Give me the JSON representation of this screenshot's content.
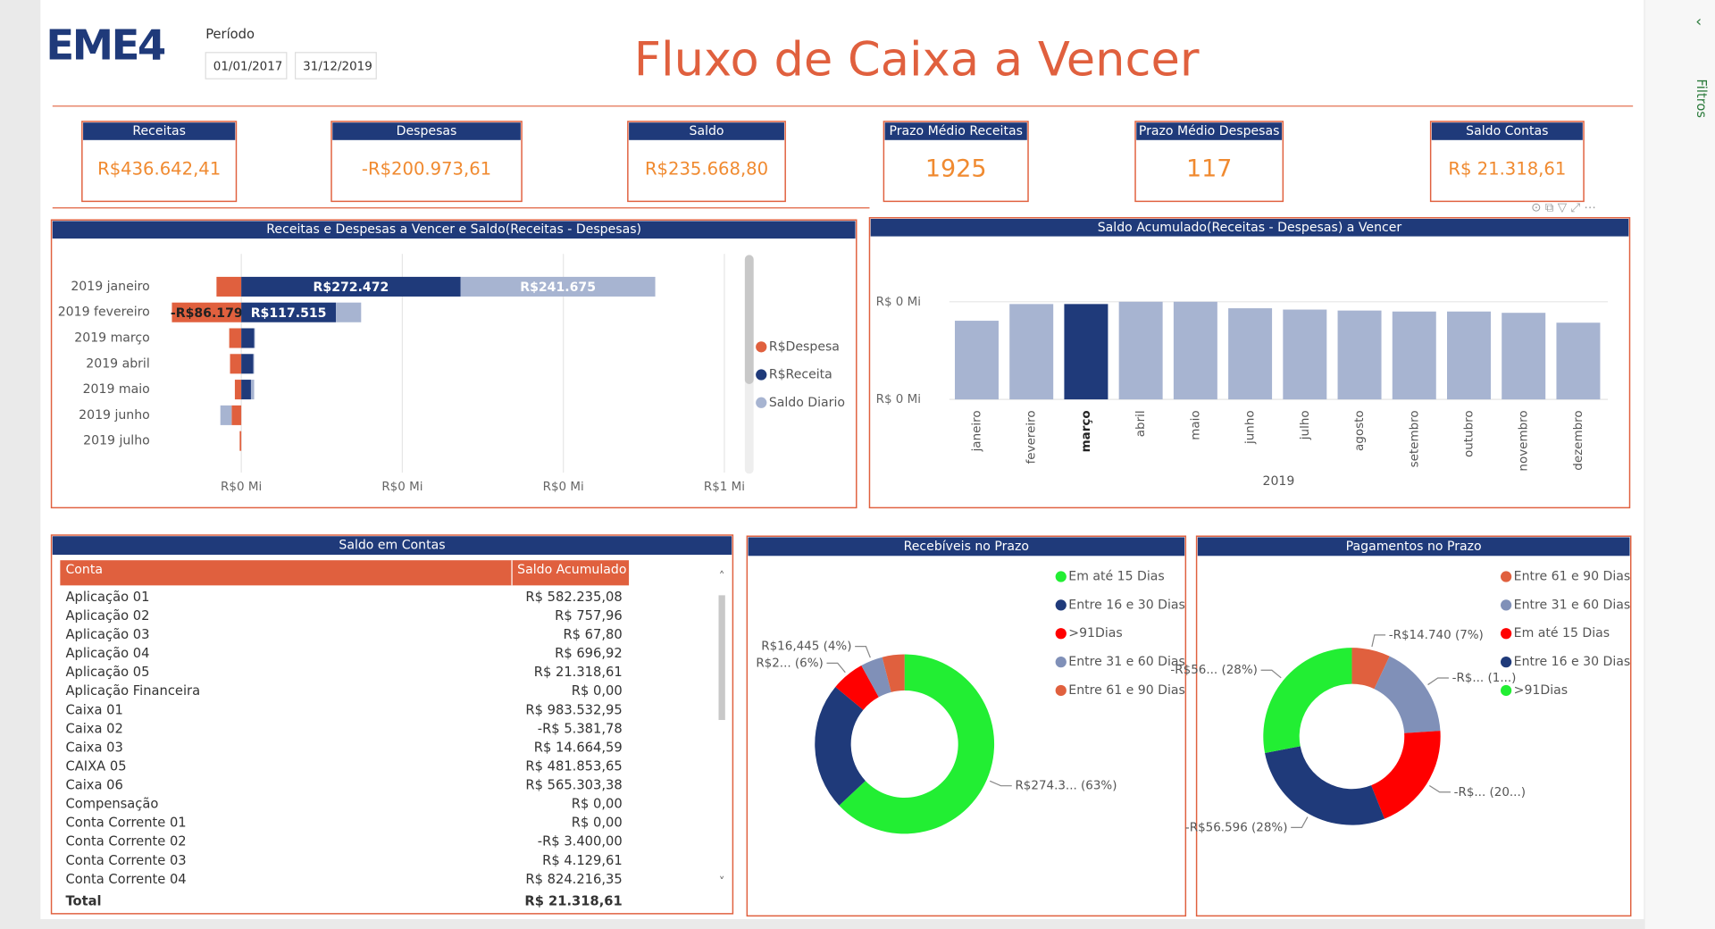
{
  "header": {
    "logo": "EME4",
    "period_label": "Período",
    "date_from": "01/01/2017",
    "date_to": "31/12/2019",
    "title": "Fluxo de Caixa a Vencer",
    "filters": "Filtros"
  },
  "kpis": [
    {
      "label": "Receitas",
      "value": "R$436.642,41"
    },
    {
      "label": "Despesas",
      "value": "-R$200.973,61"
    },
    {
      "label": "Saldo",
      "value": "R$235.668,80"
    },
    {
      "label": "Prazo Médio Receitas",
      "value": "1925"
    },
    {
      "label": "Prazo Médio Despesas",
      "value": "117"
    },
    {
      "label": "Saldo Contas",
      "value": "R$ 21.318,61"
    }
  ],
  "bar_chart": {
    "type": "bar",
    "orientation": "horizontal",
    "stacked": true,
    "title": "Receitas e Despesas a Vencer e Saldo(Receitas - Despesas)",
    "categories": [
      "2019 janeiro",
      "2019 fevereiro",
      "2019 março",
      "2019 abril",
      "2019 maio",
      "2019 junho",
      "2019 julho"
    ],
    "series": [
      {
        "name": "R$Despesa",
        "color": "#e0603e",
        "values": [
          -30797,
          -86179,
          -15000,
          -14000,
          -8000,
          -12000,
          -2000
        ],
        "value_labels": [
          null,
          "-R$86.179",
          null,
          null,
          null,
          null,
          null
        ]
      },
      {
        "name": "R$Receita",
        "color": "#1f3a7a",
        "values": [
          272472,
          117515,
          16000,
          15000,
          12000,
          0,
          0
        ],
        "value_labels": [
          "R$272.472",
          "R$117.515",
          null,
          null,
          null,
          null,
          null
        ]
      },
      {
        "name": "Saldo Diario",
        "color": "#a7b4d1",
        "values": [
          241675,
          31336,
          1000,
          1000,
          4000,
          -14000,
          0
        ],
        "value_labels": [
          "R$241.675",
          null,
          null,
          null,
          null,
          null,
          null
        ]
      }
    ],
    "xlim": [
      -100000,
      620000
    ],
    "xticks": [
      {
        "value": 0,
        "label": "R$0 Mi"
      },
      {
        "value": 200000,
        "label": "R$0 Mi"
      },
      {
        "value": 400000,
        "label": "R$0 Mi"
      },
      {
        "value": 600000,
        "label": "R$1 Mi"
      }
    ],
    "grid": true
  },
  "column_chart": {
    "type": "bar",
    "title": "Saldo Acumulado(Receitas - Despesas) a Vencer",
    "categories": [
      "janeiro",
      "fevereiro",
      "março",
      "abril",
      "maio",
      "junho",
      "julho",
      "agosto",
      "setembro",
      "outubro",
      "novembro",
      "dezembro"
    ],
    "x_label": "2019",
    "values": [
      241675,
      293000,
      293000,
      300000,
      300000,
      280000,
      276000,
      273000,
      270000,
      270000,
      266000,
      235669
    ],
    "colors": [
      "#a7b4d1",
      "#a7b4d1",
      "#1f3a7a",
      "#a7b4d1",
      "#a7b4d1",
      "#a7b4d1",
      "#a7b4d1",
      "#a7b4d1",
      "#a7b4d1",
      "#a7b4d1",
      "#a7b4d1",
      "#a7b4d1"
    ],
    "ylim": [
      0,
      390000
    ],
    "yticks": [
      {
        "value": 0,
        "label": "R$ 0 Mi"
      },
      {
        "value": 300000,
        "label": "R$ 0 Mi"
      }
    ],
    "grid": true
  },
  "table": {
    "title": "Saldo em Contas",
    "columns": [
      "Conta",
      "Saldo Acumulado"
    ],
    "rows": [
      [
        "Aplicação 01",
        "R$ 582.235,08"
      ],
      [
        "Aplicação 02",
        "R$ 757,96"
      ],
      [
        "Aplicação 03",
        "R$ 67,80"
      ],
      [
        "Aplicação 04",
        "R$ 696,92"
      ],
      [
        "Aplicação 05",
        "R$ 21.318,61"
      ],
      [
        "Aplicação Financeira",
        "R$ 0,00"
      ],
      [
        "Caixa 01",
        "R$ 983.532,95"
      ],
      [
        "Caixa 02",
        "-R$ 5.381,78"
      ],
      [
        "Caixa 03",
        "R$ 14.664,59"
      ],
      [
        "CAIXA 05",
        "R$ 481.853,65"
      ],
      [
        "Caixa 06",
        "R$ 565.303,38"
      ],
      [
        "Compensação",
        "R$ 0,00"
      ],
      [
        "Conta Corrente 01",
        "R$ 0,00"
      ],
      [
        "Conta Corrente 02",
        "-R$ 3.400,00"
      ],
      [
        "Conta Corrente 03",
        "R$ 4.129,61"
      ],
      [
        "Conta Corrente 04",
        "R$ 824.216,35"
      ]
    ],
    "total": [
      "Total",
      "R$ 21.318,61"
    ]
  },
  "donut1": {
    "type": "donut",
    "title": "Recebíveis no Prazo",
    "categories": [
      "Em até 15 Dias",
      "Entre 16 e 30 Dias",
      ">91Dias",
      "Entre 31 e 60 Dias",
      "Entre 61 e 90 Dias"
    ],
    "values": [
      63,
      23,
      6,
      4,
      4
    ],
    "colors": [
      "#22ee33",
      "#1f3a7a",
      "#ff0000",
      "#8090b8",
      "#e0603e"
    ],
    "value_labels": [
      "R$274.3... (63%)",
      null,
      "R$2... (6%)",
      "R$16,445 (4%)",
      null
    ]
  },
  "donut2": {
    "type": "donut",
    "title": "Pagamentos no Prazo",
    "categories": [
      "Entre 61 e 90 Dias",
      "Entre 31 e 60 Dias",
      "Em até 15 Dias",
      "Entre 16 e 30 Dias",
      ">91Dias"
    ],
    "values": [
      7,
      17,
      20,
      28,
      28
    ],
    "colors": [
      "#e0603e",
      "#8090b8",
      "#ff0000",
      "#1f3a7a",
      "#22ee33"
    ],
    "value_labels": [
      "-R$14.740 (7%)",
      "-R$... (1...)",
      "-R$... (20...)",
      "-R$56.596 (28%)",
      "-R$56... (28%)"
    ]
  }
}
